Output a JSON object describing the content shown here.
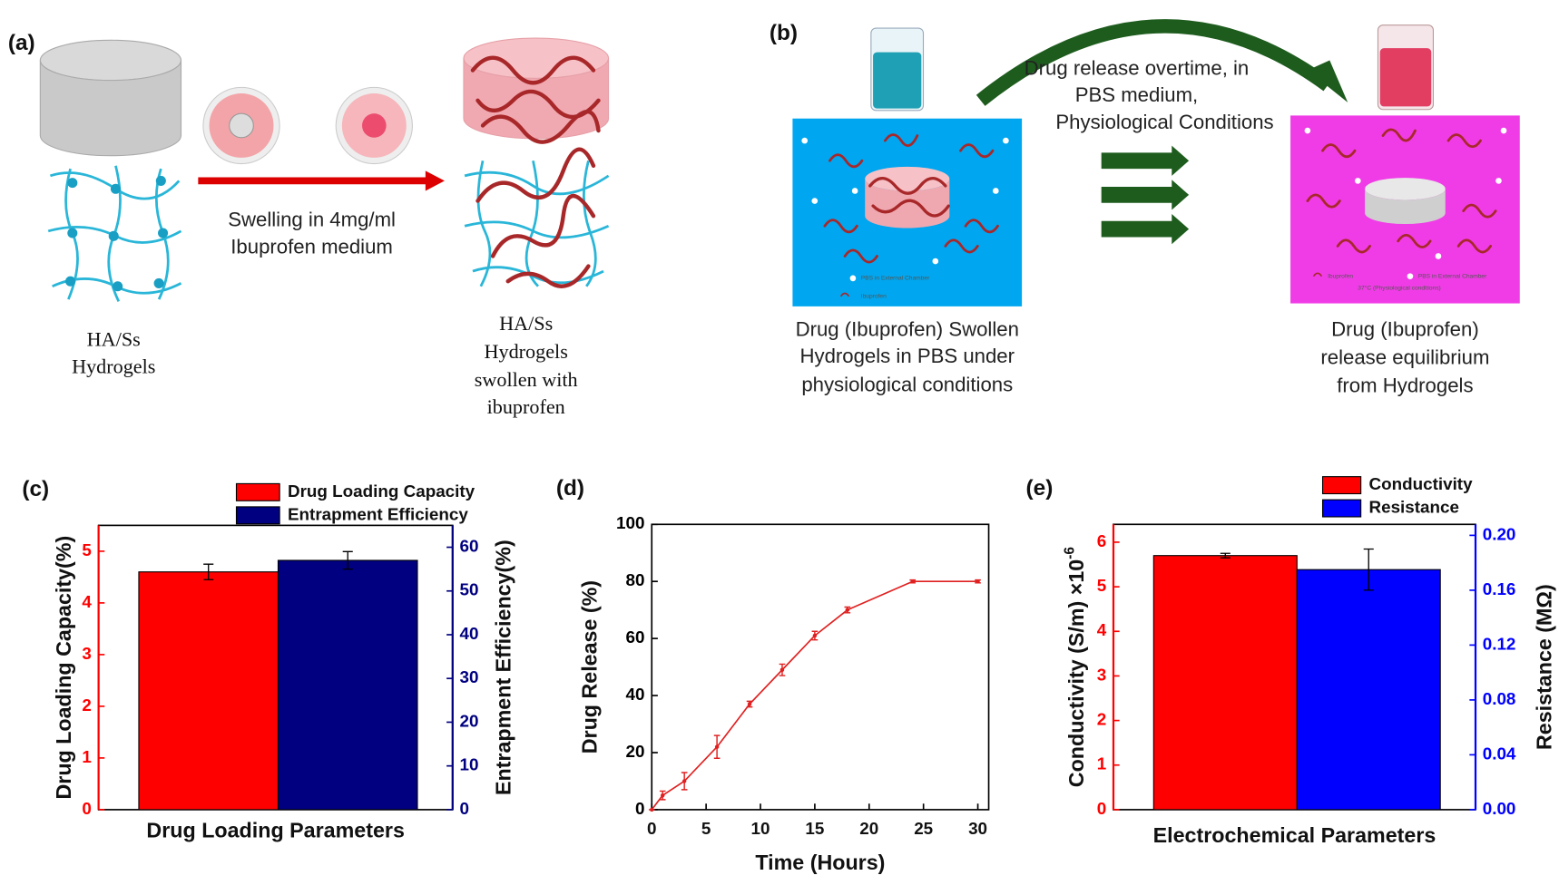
{
  "panels": [
    {
      "label": "(a)",
      "texts": [
        "Swelling in 4mg/ml",
        "Ibuprofen medium",
        "HA/Ss",
        "Hydrogels",
        "HA/Ss",
        "Hydrogels",
        "swollen with",
        "ibuprofen"
      ]
    },
    {
      "label": "(b)",
      "texts": [
        "PBS in External Chamber",
        "Ibuprofen",
        "Drug release overtime, in",
        "PBS medium,",
        "Physiological Conditions",
        "Ibuprofen",
        "PBS in External Chamber",
        "37°C (Physiological conditions)",
        "Drug (Ibuprofen) Swollen",
        "Hydrogels in PBS under",
        "physiological conditions",
        "Drug (Ibuprofen)",
        "release equilibrium",
        "from Hydrogels"
      ]
    }
  ],
  "chart_data": [
    {
      "type": "bar",
      "panel": "(c)",
      "x_label": "Drug Loading Parameters",
      "y_label": "Drug Loading Capacity(%)",
      "y2_label": "Entrapment Efficiency(%)",
      "series": [
        {
          "name": "Drug Loading Capacity",
          "color": "#ff0000",
          "values": [
            4.6
          ],
          "errors": [
            0.15
          ]
        },
        {
          "name": "Entrapment Efficiency",
          "color": "#000080",
          "values": [
            57
          ],
          "errors": [
            2
          ],
          "axis": "y2"
        }
      ],
      "ylim": [
        0,
        5.5
      ],
      "yticks": [
        0,
        1,
        2,
        3,
        4,
        5
      ],
      "y2lim": [
        0,
        65
      ],
      "y2ticks": [
        0,
        10,
        20,
        30,
        40,
        50,
        60
      ]
    },
    {
      "type": "line",
      "panel": "(d)",
      "x_label": "Time (Hours)",
      "y_label": "Drug Release (%)",
      "x": [
        0,
        1,
        3,
        6,
        9,
        12,
        15,
        18,
        24,
        30
      ],
      "series": [
        {
          "name": "Drug Release",
          "color": "#e02020",
          "values": [
            0,
            5,
            10,
            22,
            37,
            49,
            61,
            70,
            80,
            80
          ],
          "errors": [
            0,
            1.5,
            3,
            4,
            1,
            2,
            1.5,
            1,
            0.5,
            0.5
          ]
        }
      ],
      "xlim": [
        0,
        31
      ],
      "xticks": [
        0,
        5,
        10,
        15,
        20,
        25,
        30
      ],
      "ylim": [
        0,
        100
      ],
      "yticks": [
        0,
        20,
        40,
        60,
        80,
        100
      ]
    },
    {
      "type": "bar",
      "panel": "(e)",
      "x_label": "Electrochemical Parameters",
      "y_label": "Conductivity (S/m) ×10",
      "y_label_exponent": "-6",
      "y2_label": "Resistance (MΩ)",
      "series": [
        {
          "name": "Conductivity",
          "color": "#ff0000",
          "values": [
            5.7
          ],
          "errors": [
            0.05
          ]
        },
        {
          "name": "Resistance",
          "color": "#0000ff",
          "values": [
            0.175
          ],
          "errors": [
            0.015
          ],
          "axis": "y2"
        }
      ],
      "ylim": [
        0,
        6.4
      ],
      "yticks": [
        0,
        1,
        2,
        3,
        4,
        5,
        6
      ],
      "y2lim": [
        0,
        0.208
      ],
      "y2ticks": [
        {
          "value": 0,
          "label": "0.00"
        },
        {
          "value": 0.04,
          "label": "0.04"
        },
        {
          "value": 0.08,
          "label": "0.08"
        },
        {
          "value": 0.12,
          "label": "0.12"
        },
        {
          "value": 0.16,
          "label": "0.16"
        },
        {
          "value": 0.2,
          "label": "0.20"
        }
      ]
    }
  ]
}
